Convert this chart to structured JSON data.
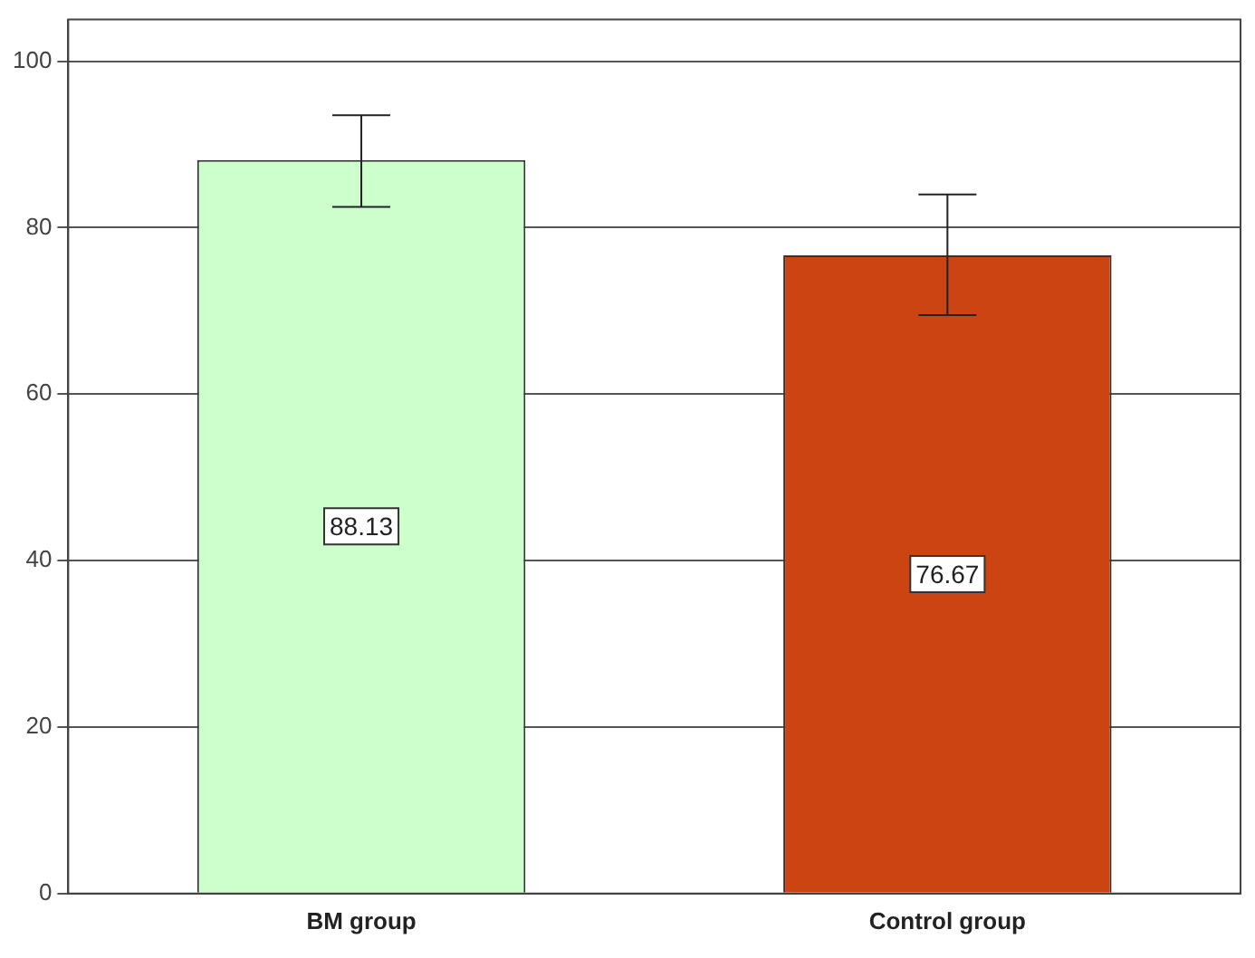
{
  "chart_data": {
    "type": "bar",
    "categories": [
      "BM group",
      "Control group"
    ],
    "values": [
      88.13,
      76.67
    ],
    "colors": [
      "#ccffcc",
      "#cc4411"
    ],
    "errors": [
      [
        82.5,
        93.5
      ],
      [
        69.5,
        84
      ]
    ],
    "ylim": [
      0,
      105
    ],
    "yticks": [
      0,
      20,
      40,
      60,
      80,
      100
    ],
    "grid": "y",
    "legend": false,
    "data_labels": true
  }
}
